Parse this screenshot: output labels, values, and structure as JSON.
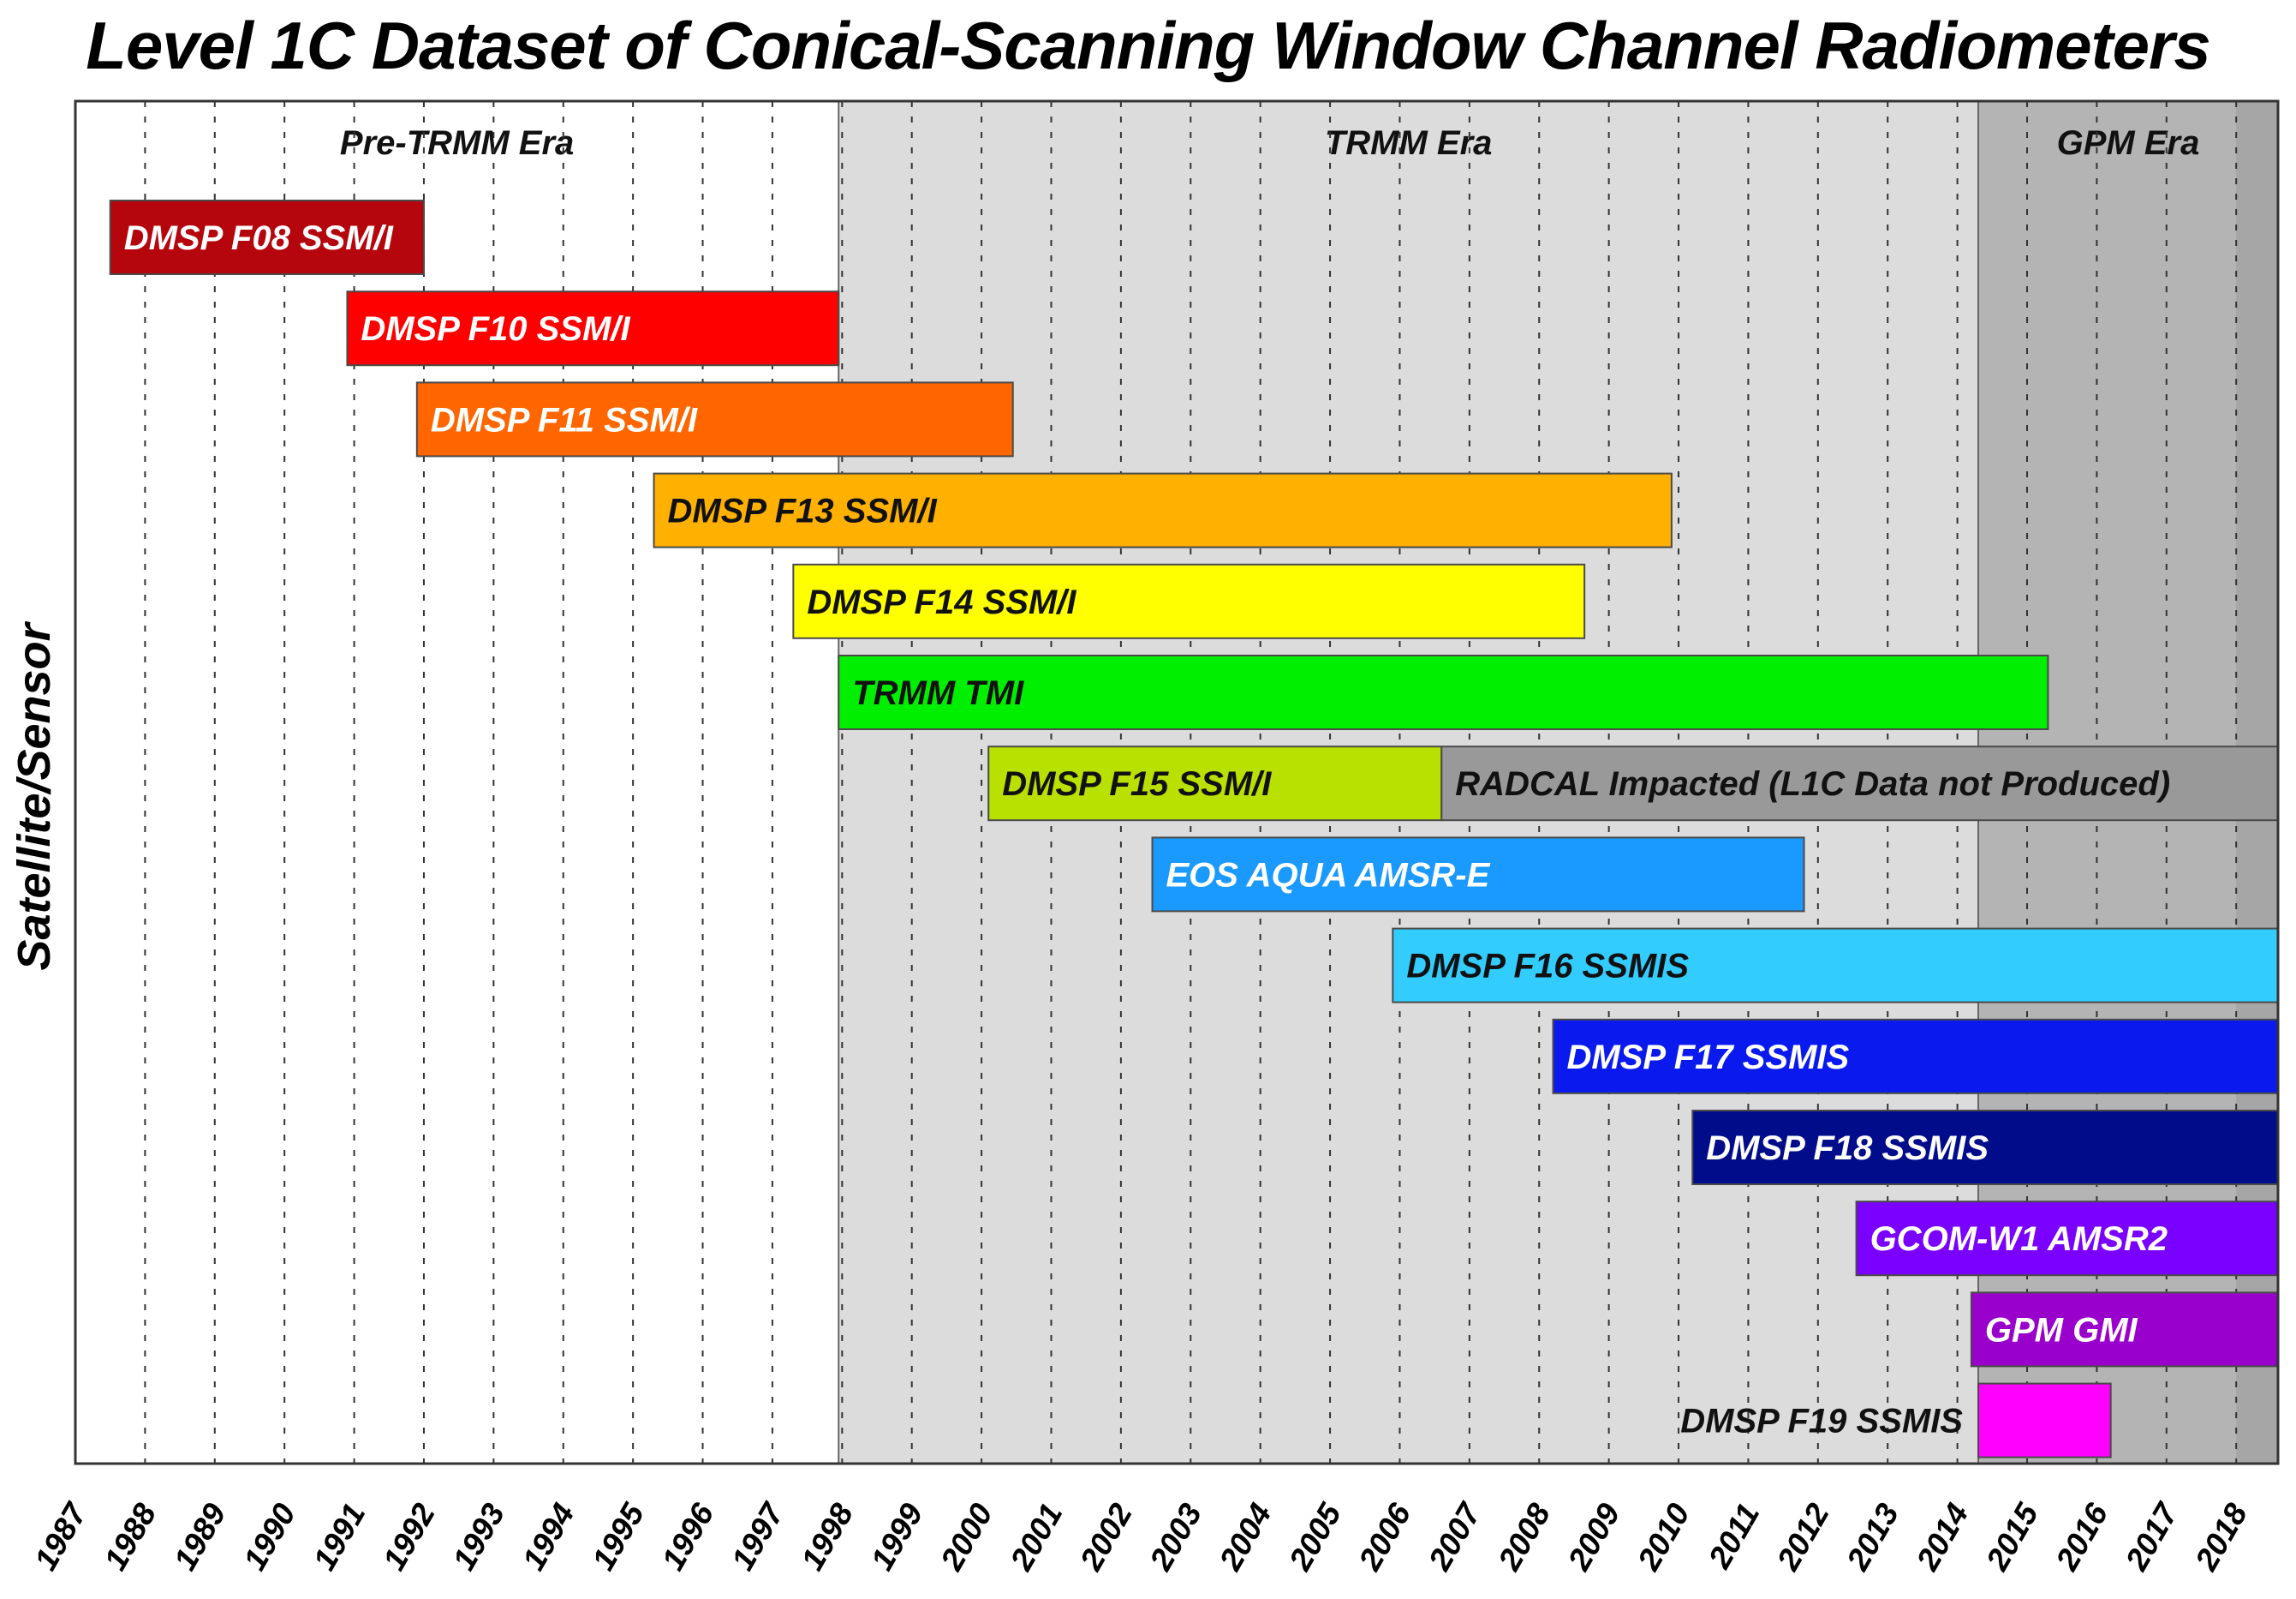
{
  "chart_data": {
    "type": "timeline-bar",
    "title": "Level 1C Dataset of Conical-Scanning Window Channel Radiometers",
    "ylabel": "Satellite/Sensor",
    "xlabel": "",
    "xlim": [
      1987,
      2018.6
    ],
    "grid": true,
    "ticks": [
      "1987",
      "1988",
      "1989",
      "1990",
      "1991",
      "1992",
      "1993",
      "1994",
      "1995",
      "1996",
      "1997",
      "1998",
      "1999",
      "2000",
      "2001",
      "2002",
      "2003",
      "2004",
      "2005",
      "2006",
      "2007",
      "2008",
      "2009",
      "2010",
      "2011",
      "2012",
      "2013",
      "2014",
      "2015",
      "2016",
      "2017",
      "2018"
    ],
    "eras": [
      {
        "label": "Pre-TRMM Era",
        "start": 1987,
        "end": 1997.95,
        "color": "#ffffff"
      },
      {
        "label": "TRMM Era",
        "start": 1997.95,
        "end": 2014.3,
        "color": "#dcdcdc"
      },
      {
        "label": "GPM Era",
        "start": 2014.3,
        "end": 2018.6,
        "color": "#b4b4b4"
      }
    ],
    "bars": [
      {
        "label": "DMSP F08 SSM/I",
        "start": 1987.5,
        "end": 1992.0,
        "color": "#b5050d",
        "text_color": "#ffffff"
      },
      {
        "label": "DMSP F10 SSM/I",
        "start": 1990.9,
        "end": 1997.95,
        "color": "#ff0000",
        "text_color": "#ffffff"
      },
      {
        "label": "DMSP F11 SSM/I",
        "start": 1991.9,
        "end": 2000.45,
        "color": "#ff6600",
        "text_color": "#ffffff"
      },
      {
        "label": "DMSP F13 SSM/I",
        "start": 1995.3,
        "end": 2009.9,
        "color": "#ffb000",
        "text_color": "#111111"
      },
      {
        "label": "DMSP F14 SSM/I",
        "start": 1997.3,
        "end": 2008.65,
        "color": "#ffff00",
        "text_color": "#111111"
      },
      {
        "label": "TRMM TMI",
        "start": 1997.95,
        "end": 2015.3,
        "color": "#00ee00",
        "text_color": "#111111"
      },
      {
        "label": "DMSP F15 SSM/I",
        "start": 2000.1,
        "end": 2006.6,
        "color": "#b8e000",
        "text_color": "#111111"
      },
      {
        "label": "RADCAL Impacted (L1C Data not Produced)",
        "start": 2006.6,
        "end": 2018.6,
        "color": "#999999",
        "text_color": "#111111"
      },
      {
        "label": "EOS AQUA AMSR-E",
        "start": 2002.45,
        "end": 2011.8,
        "color": "#1a99ff",
        "text_color": "#ffffff"
      },
      {
        "label": "DMSP F16 SSMIS",
        "start": 2005.9,
        "end": 2018.6,
        "color": "#33ccff",
        "text_color": "#111111"
      },
      {
        "label": "DMSP F17 SSMIS",
        "start": 2008.2,
        "end": 2018.6,
        "color": "#0a1aee",
        "text_color": "#ffffff"
      },
      {
        "label": "DMSP F18 SSMIS",
        "start": 2010.2,
        "end": 2018.6,
        "color": "#000c8a",
        "text_color": "#ffffff"
      },
      {
        "label": "GCOM-W1 AMSR2",
        "start": 2012.55,
        "end": 2018.6,
        "color": "#7a00ff",
        "text_color": "#ffffff"
      },
      {
        "label": "GPM GMI",
        "start": 2014.2,
        "end": 2018.6,
        "color": "#9900cc",
        "text_color": "#ffffff"
      },
      {
        "label": "DMSP F19 SSMIS",
        "start": 2014.3,
        "end": 2016.2,
        "color": "#ff00ff",
        "text_color": "#111111",
        "label_position": "left"
      }
    ]
  }
}
